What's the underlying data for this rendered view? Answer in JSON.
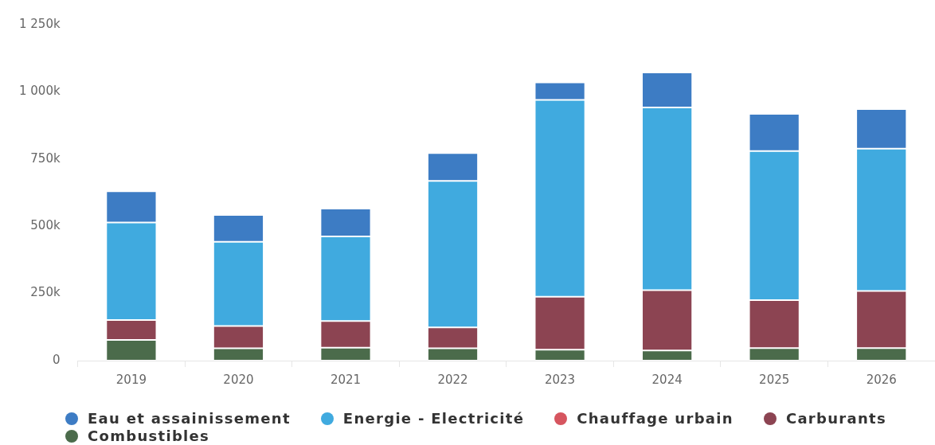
{
  "chart_data": {
    "type": "bar",
    "stacked": true,
    "categories": [
      "2019",
      "2020",
      "2021",
      "2022",
      "2023",
      "2024",
      "2025",
      "2026"
    ],
    "series": [
      {
        "name": "Combustibles",
        "color": "#4b6b4b",
        "values": [
          77000,
          46000,
          48000,
          46000,
          41000,
          38000,
          47000,
          47000
        ]
      },
      {
        "name": "Carburants",
        "color": "#8c4452",
        "values": [
          74000,
          83000,
          99000,
          78000,
          197000,
          224000,
          178000,
          212000
        ]
      },
      {
        "name": "Chauffage urbain",
        "color": "#d6555f",
        "values": [
          null,
          null,
          null,
          null,
          null,
          null,
          null,
          null
        ]
      },
      {
        "name": "Energie - Electricité",
        "color": "#40aadf",
        "values": [
          363000,
          313000,
          315000,
          545000,
          732000,
          680000,
          555000,
          530000
        ]
      },
      {
        "name": "Eau et assainissement",
        "color": "#3d7cc4",
        "values": [
          116000,
          100000,
          104000,
          103000,
          65000,
          130000,
          138000,
          147000
        ]
      }
    ],
    "ylim": [
      0,
      1250000
    ],
    "yticks": [
      0,
      {
        "value": 250000,
        "label": "250k"
      },
      {
        "value": 500000,
        "label": "500k"
      },
      {
        "value": 750000,
        "label": "750k"
      },
      {
        "value": 1000000,
        "label": "1 000k"
      },
      {
        "value": 1250000,
        "label": "1 250k"
      }
    ],
    "grid": false,
    "legend": "bottom"
  }
}
